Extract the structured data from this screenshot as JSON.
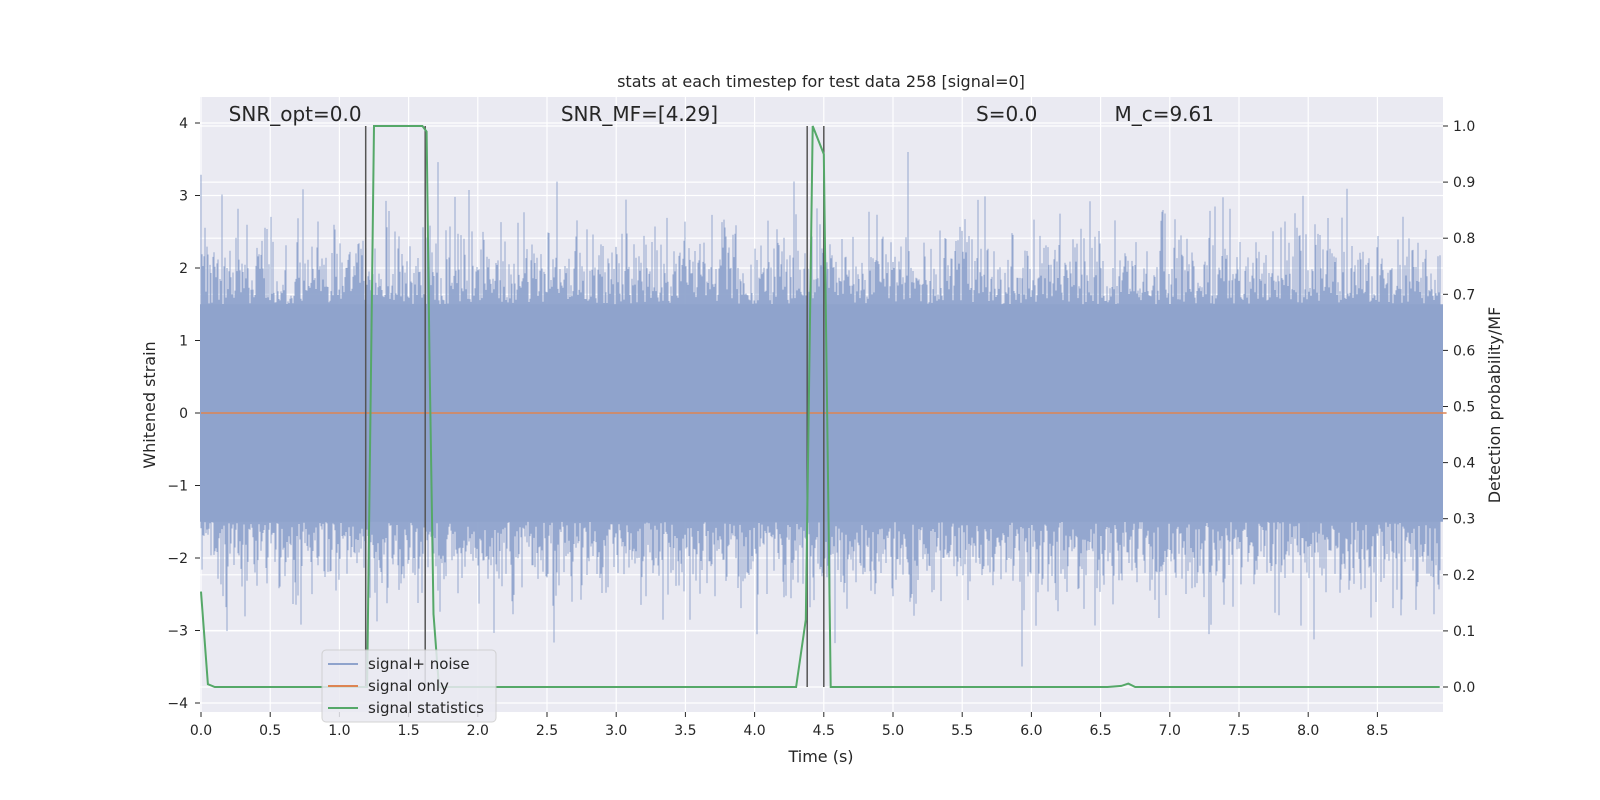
{
  "chart_data": {
    "type": "line",
    "title": "stats at each timestep for test data 258 [signal=0]",
    "xlabel": "Time (s)",
    "ylabel_left": "Whitened strain",
    "ylabel_right": "Detection probability/MF",
    "xlim": [
      0.0,
      9.0
    ],
    "ylim_left": [
      -4.35,
      4.4
    ],
    "ylim_right": [
      -0.045,
      1.045
    ],
    "x_ticks": [
      "0.0",
      "0.5",
      "1.0",
      "1.5",
      "2.0",
      "2.5",
      "3.0",
      "3.5",
      "4.0",
      "4.5",
      "5.0",
      "5.5",
      "6.0",
      "6.5",
      "7.0",
      "7.5",
      "8.0",
      "8.5"
    ],
    "y_ticks_left": [
      "4",
      "3",
      "2",
      "1",
      "0",
      "−1",
      "−2",
      "−3",
      "−4"
    ],
    "y_ticks_right": [
      "1.0",
      "0.9",
      "0.8",
      "0.7",
      "0.6",
      "0.5",
      "0.4",
      "0.3",
      "0.2",
      "0.1",
      "0.0"
    ],
    "grid": true,
    "annotations": [
      {
        "id": "snr-opt",
        "text": "SNR_opt=0.0",
        "x": 0.2
      },
      {
        "id": "snr-mf",
        "text": "SNR_MF=[4.29]",
        "x": 2.6
      },
      {
        "id": "s-val",
        "text": "S=0.0",
        "x": 5.6
      },
      {
        "id": "mc-val",
        "text": "M_c=9.61",
        "x": 6.6
      }
    ],
    "series": [
      {
        "name": "signal+ noise",
        "color": "#8fa3cc",
        "axis": "left",
        "description_values": {
          "band_min": -1.5,
          "band_max": 1.5,
          "peak_max": 3.6,
          "peak_min": -3.7
        }
      },
      {
        "name": "signal only",
        "color": "#dd8452",
        "axis": "left",
        "x": [
          0.0,
          9.0
        ],
        "y": [
          0.0,
          0.0
        ]
      },
      {
        "name": "signal statistics",
        "color": "#55a868",
        "axis": "right",
        "x": [
          0.0,
          0.05,
          0.1,
          1.18,
          1.2,
          1.25,
          1.6,
          1.63,
          1.65,
          1.68,
          1.72,
          4.3,
          4.37,
          4.42,
          4.5,
          4.55,
          4.6,
          6.55,
          6.65,
          6.7,
          6.75,
          8.95
        ],
        "y": [
          0.17,
          0.005,
          0.0,
          0.0,
          0.0,
          1.0,
          1.0,
          0.99,
          0.6,
          0.13,
          0.0,
          0.0,
          0.12,
          1.0,
          0.95,
          0.0,
          0.0,
          0.0,
          0.002,
          0.006,
          0.0,
          0.0
        ]
      }
    ],
    "vertical_lines": [
      1.19,
      1.62,
      4.38,
      4.5
    ],
    "legend": {
      "position": "lower-left",
      "entries": [
        "signal+ noise",
        "signal only",
        "signal statistics"
      ]
    }
  }
}
